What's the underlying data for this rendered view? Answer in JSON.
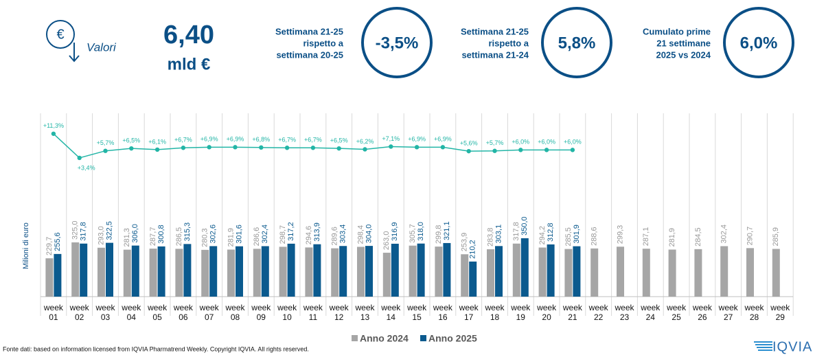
{
  "header": {
    "icon_label": "Valori",
    "value": "6,40",
    "unit": "mld €",
    "kpis": [
      {
        "lines": [
          "Settimana 21-25",
          "rispetto a",
          "settimana 20-25"
        ],
        "value": "-3,5%"
      },
      {
        "lines": [
          "Settimana 21-25",
          "rispetto a",
          "settimana 21-24"
        ],
        "value": "5,8%"
      },
      {
        "lines": [
          "Cumulato prime",
          "21 settimane",
          "2025 vs 2024"
        ],
        "value": "6,0%"
      }
    ]
  },
  "chart_data": {
    "type": "bar",
    "y_label": "Milioni di euro",
    "categories": [
      "week 01",
      "week 02",
      "week 03",
      "week 04",
      "week 05",
      "week 06",
      "week 07",
      "week 08",
      "week 09",
      "week 10",
      "week 11",
      "week 12",
      "week 13",
      "week 14",
      "week 15",
      "week 16",
      "week 17",
      "week 18",
      "week 19",
      "week 20",
      "week 21",
      "week 22",
      "week 23",
      "week 24",
      "week 25",
      "week 26",
      "week 27",
      "week 28",
      "week 29"
    ],
    "ylim": [
      0,
      1300
    ],
    "y2lim": [
      -42,
      29
    ],
    "legend": "bottom",
    "series": [
      {
        "name": "Anno 2024",
        "color": "#a6a6a6",
        "values": [
          229.7,
          325.0,
          293.0,
          281.3,
          287.7,
          286.5,
          280.3,
          281.9,
          286.6,
          298.7,
          294.6,
          289.6,
          298.4,
          263.0,
          305.7,
          299.8,
          253.9,
          283.8,
          317.8,
          294.2,
          285.5,
          288.6,
          299.3,
          287.1,
          281.9,
          284.5,
          302.4,
          290.7,
          285.9
        ],
        "value_labels": [
          "229,7",
          "325,0",
          "293,0",
          "281,3",
          "287,7",
          "286,5",
          "280,3",
          "281,9",
          "286,6",
          "298,7",
          "294,6",
          "289,6",
          "298,4",
          "263,0",
          "305,7",
          "299,8",
          "253,9",
          "283,8",
          "317,8",
          "294,2",
          "285,5",
          "288,6",
          "299,3",
          "287,1",
          "281,9",
          "284,5",
          "302,4",
          "290,7",
          "285,9"
        ]
      },
      {
        "name": "Anno 2025",
        "color": "#0b5a8e",
        "values": [
          255.6,
          317.8,
          322.5,
          306.0,
          300.8,
          315.3,
          302.6,
          301.6,
          302.4,
          317.2,
          313.9,
          303.4,
          304.0,
          316.9,
          318.0,
          321.1,
          210.2,
          303.1,
          350.0,
          312.8,
          301.9,
          null,
          null,
          null,
          null,
          null,
          null,
          null,
          null
        ],
        "value_labels": [
          "255,6",
          "317,8",
          "322,5",
          "306,0",
          "300,8",
          "315,3",
          "302,6",
          "301,6",
          "302,4",
          "317,2",
          "313,9",
          "303,4",
          "304,0",
          "316,9",
          "318,0",
          "321,1",
          "210,2",
          "303,1",
          "350,0",
          "312,8",
          "301,9",
          null,
          null,
          null,
          null,
          null,
          null,
          null,
          null
        ]
      }
    ],
    "growth": {
      "type": "line",
      "axis": "y2",
      "color": "#22b5a6",
      "values": [
        11.3,
        3.4,
        5.7,
        6.5,
        6.1,
        6.7,
        6.9,
        6.9,
        6.8,
        6.7,
        6.7,
        6.5,
        6.2,
        7.1,
        6.9,
        6.9,
        5.6,
        5.7,
        6.0,
        6.0,
        6.0,
        null,
        null,
        null,
        null,
        null,
        null,
        null,
        null
      ],
      "value_labels": [
        "+11,3%",
        "+3,4%",
        "+5,7%",
        "+6,5%",
        "+6,1%",
        "+6,7%",
        "+6,9%",
        "+6,9%",
        "+6,8%",
        "+6,7%",
        "+6,7%",
        "+6,5%",
        "+6,2%",
        "+7,1%",
        "+6,9%",
        "+6,9%",
        "+5,6%",
        "+5,7%",
        "+6,0%",
        "+6,0%",
        "+6,0%",
        null,
        null,
        null,
        null,
        null,
        null,
        null,
        null
      ]
    }
  },
  "footer": {
    "source": "Fonte dati: based on information licensed from IQVIA Pharmatrend Weekly. Copyright IQVIA. All rights reserved.",
    "logo": "IQVIA"
  }
}
